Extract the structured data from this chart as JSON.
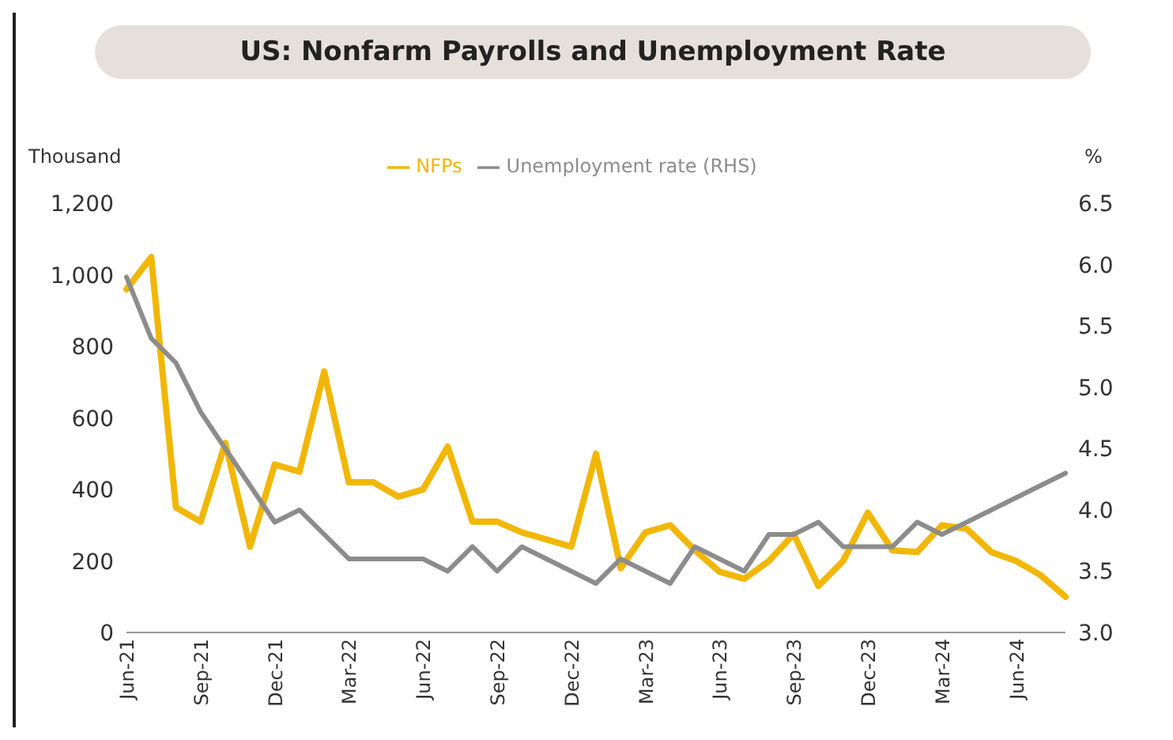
{
  "chart_data": {
    "type": "line",
    "title": "US: Nonfarm Payrolls and Unemployment Rate",
    "ylabel": "Thousand",
    "y2label": "%",
    "categories": [
      "Jun-21",
      null,
      null,
      "Sep-21",
      null,
      null,
      "Dec-21",
      null,
      null,
      "Mar-22",
      null,
      null,
      "Jun-22",
      null,
      null,
      "Sep-22",
      null,
      null,
      "Dec-22",
      null,
      null,
      "Mar-23",
      null,
      null,
      "Jun-23",
      null,
      null,
      "Sep-23",
      null,
      null,
      "Dec-23",
      null,
      null,
      "Mar-24",
      null,
      null,
      "Jun-24",
      null,
      null
    ],
    "series": [
      {
        "name": "NFPs",
        "color": "#f2b705",
        "values": [
          960,
          1050,
          350,
          310,
          530,
          240,
          470,
          450,
          730,
          420,
          420,
          380,
          400,
          520,
          310,
          310,
          280,
          260,
          240,
          500,
          180,
          280,
          300,
          230,
          170,
          150,
          200,
          275,
          130,
          200,
          335,
          230,
          225,
          300,
          290,
          225,
          200,
          160,
          100
        ]
      },
      {
        "name": "Unemployment rate (RHS)",
        "color": "#8c8c8c",
        "axis": "y2",
        "values": [
          5.9,
          5.4,
          5.2,
          4.8,
          4.5,
          4.2,
          3.9,
          4.0,
          3.8,
          3.6,
          3.6,
          3.6,
          3.6,
          3.5,
          3.7,
          3.5,
          3.7,
          3.6,
          3.5,
          3.4,
          3.6,
          3.5,
          3.4,
          3.7,
          3.6,
          3.5,
          3.8,
          3.8,
          3.9,
          3.7,
          3.7,
          3.7,
          3.9,
          3.8,
          3.9,
          4.0,
          4.1,
          4.2,
          4.3
        ]
      }
    ],
    "ylim": [
      0,
      1200
    ],
    "yticks": [
      0,
      200,
      400,
      600,
      800,
      {
        "value": 1000,
        "label": "1,000"
      },
      {
        "value": 1200,
        "label": "1,200"
      }
    ],
    "y2lim": [
      3,
      6.5
    ],
    "y2ticks": [
      {
        "value": 3,
        "label": "3.0"
      },
      3.5,
      {
        "value": 4,
        "label": "4.0"
      },
      4.5,
      {
        "value": 5,
        "label": "5.0"
      },
      5.5,
      {
        "value": 6,
        "label": "6.0"
      },
      6.5
    ],
    "grid": false,
    "legend": "top",
    "marker": "none",
    "line_style": "solid"
  }
}
